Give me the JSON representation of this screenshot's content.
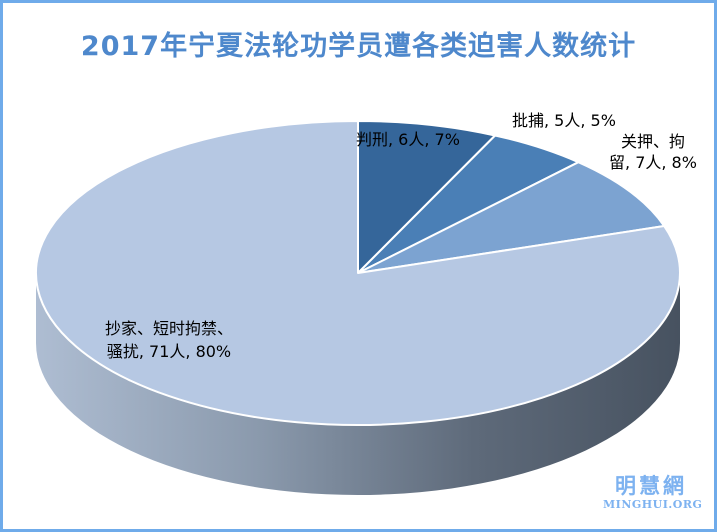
{
  "colors": {
    "frame_border": "#6FABEA",
    "accent_title": "#4E88CC",
    "watermark": "#7DB2F0",
    "label_text": "#000000"
  },
  "title": {
    "text": "2017年宁夏法轮功学员遭各类迫害人数统计"
  },
  "watermark": {
    "cjk": "明慧網",
    "latin": "MINGHUI.ORG"
  },
  "chart_data": {
    "type": "pie",
    "style": "3d",
    "title": "2017年宁夏法轮功学员遭各类迫害人数统计",
    "unit": "人",
    "start_angle_deg": 0,
    "direction": "clockwise",
    "legend": "none",
    "slices": [
      {
        "label": "判刑",
        "count": 6,
        "percent": 7,
        "color": "#35669A",
        "display": "判刑, 6人, 7%"
      },
      {
        "label": "批捕",
        "count": 5,
        "percent": 5,
        "color": "#4A7FB6",
        "display": "批捕, 5人, 5%"
      },
      {
        "label": "关押、拘留",
        "count": 7,
        "percent": 8,
        "color": "#7CA3D1",
        "display": "关押、拘留, 7人, 8%",
        "line1": "关押、拘",
        "line2": "留, 7人, 8%"
      },
      {
        "label": "抄家、短时拘禁、骚扰",
        "count": 71,
        "percent": 80,
        "color": "#B6C8E3",
        "display": "抄家、短时拘禁、骚扰, 71人, 80%",
        "line1": "抄家、短时拘禁、",
        "line2": "骚扰, 71人, 80%"
      }
    ],
    "side_gradient": [
      "#AEBDD2",
      "#8A99AC",
      "#5E6A7A",
      "#475260"
    ]
  }
}
